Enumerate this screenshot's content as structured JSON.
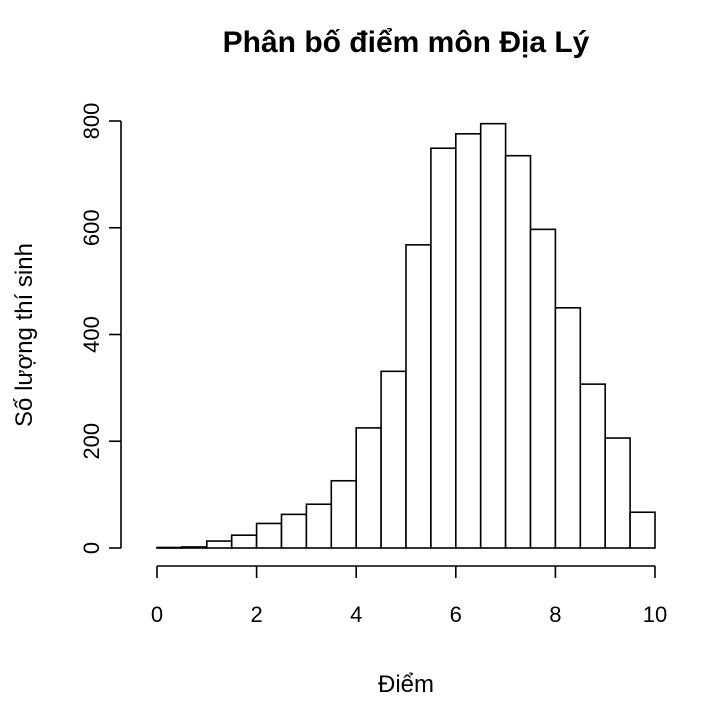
{
  "chart_data": {
    "type": "bar",
    "title": "Phân bố điểm môn Địa Lý",
    "xlabel": "Điểm",
    "ylabel": "Số lượng thí sinh",
    "bin_edges": [
      0,
      0.5,
      1,
      1.5,
      2,
      2.5,
      3,
      3.5,
      4,
      4.5,
      5,
      5.5,
      6,
      6.5,
      7,
      7.5,
      8,
      8.5,
      9,
      9.5,
      10
    ],
    "values": [
      1,
      2,
      13,
      24,
      46,
      63,
      82,
      126,
      225,
      331,
      568,
      749,
      776,
      795,
      735,
      597,
      450,
      307,
      206,
      67
    ],
    "xlim": [
      0,
      10
    ],
    "ylim": [
      0,
      800
    ],
    "x_ticks": [
      0,
      2,
      4,
      6,
      8,
      10
    ],
    "x_tick_labels": [
      "0",
      "2",
      "4",
      "6",
      "8",
      "10"
    ],
    "y_ticks": [
      0,
      200,
      400,
      600,
      800
    ],
    "y_tick_labels": [
      "0",
      "200",
      "400",
      "600",
      "800"
    ],
    "grid": false,
    "bar_fill": "#ffffff",
    "bar_stroke": "#000000"
  }
}
